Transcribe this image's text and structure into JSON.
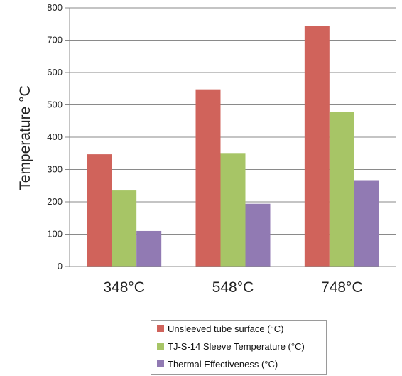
{
  "chart_data": {
    "type": "bar",
    "ylabel": "Temperature °C",
    "xlabel": "",
    "categories": [
      "348°C",
      "548°C",
      "748°C"
    ],
    "ylim": [
      0,
      800
    ],
    "yticks": [
      0,
      100,
      200,
      300,
      400,
      500,
      600,
      700,
      800
    ],
    "grid": true,
    "legend_position": "bottom",
    "series": [
      {
        "name": "Unsleeved tube surface (°C)",
        "color": "#d0635b",
        "values": [
          347,
          548,
          745
        ]
      },
      {
        "name": "TJ-S-14 Sleeve Temperature (°C)",
        "color": "#a7c566",
        "values": [
          235,
          351,
          479
        ]
      },
      {
        "name": "Thermal Effectiveness (°C)",
        "color": "#917ab3",
        "values": [
          110,
          194,
          267
        ]
      }
    ]
  }
}
